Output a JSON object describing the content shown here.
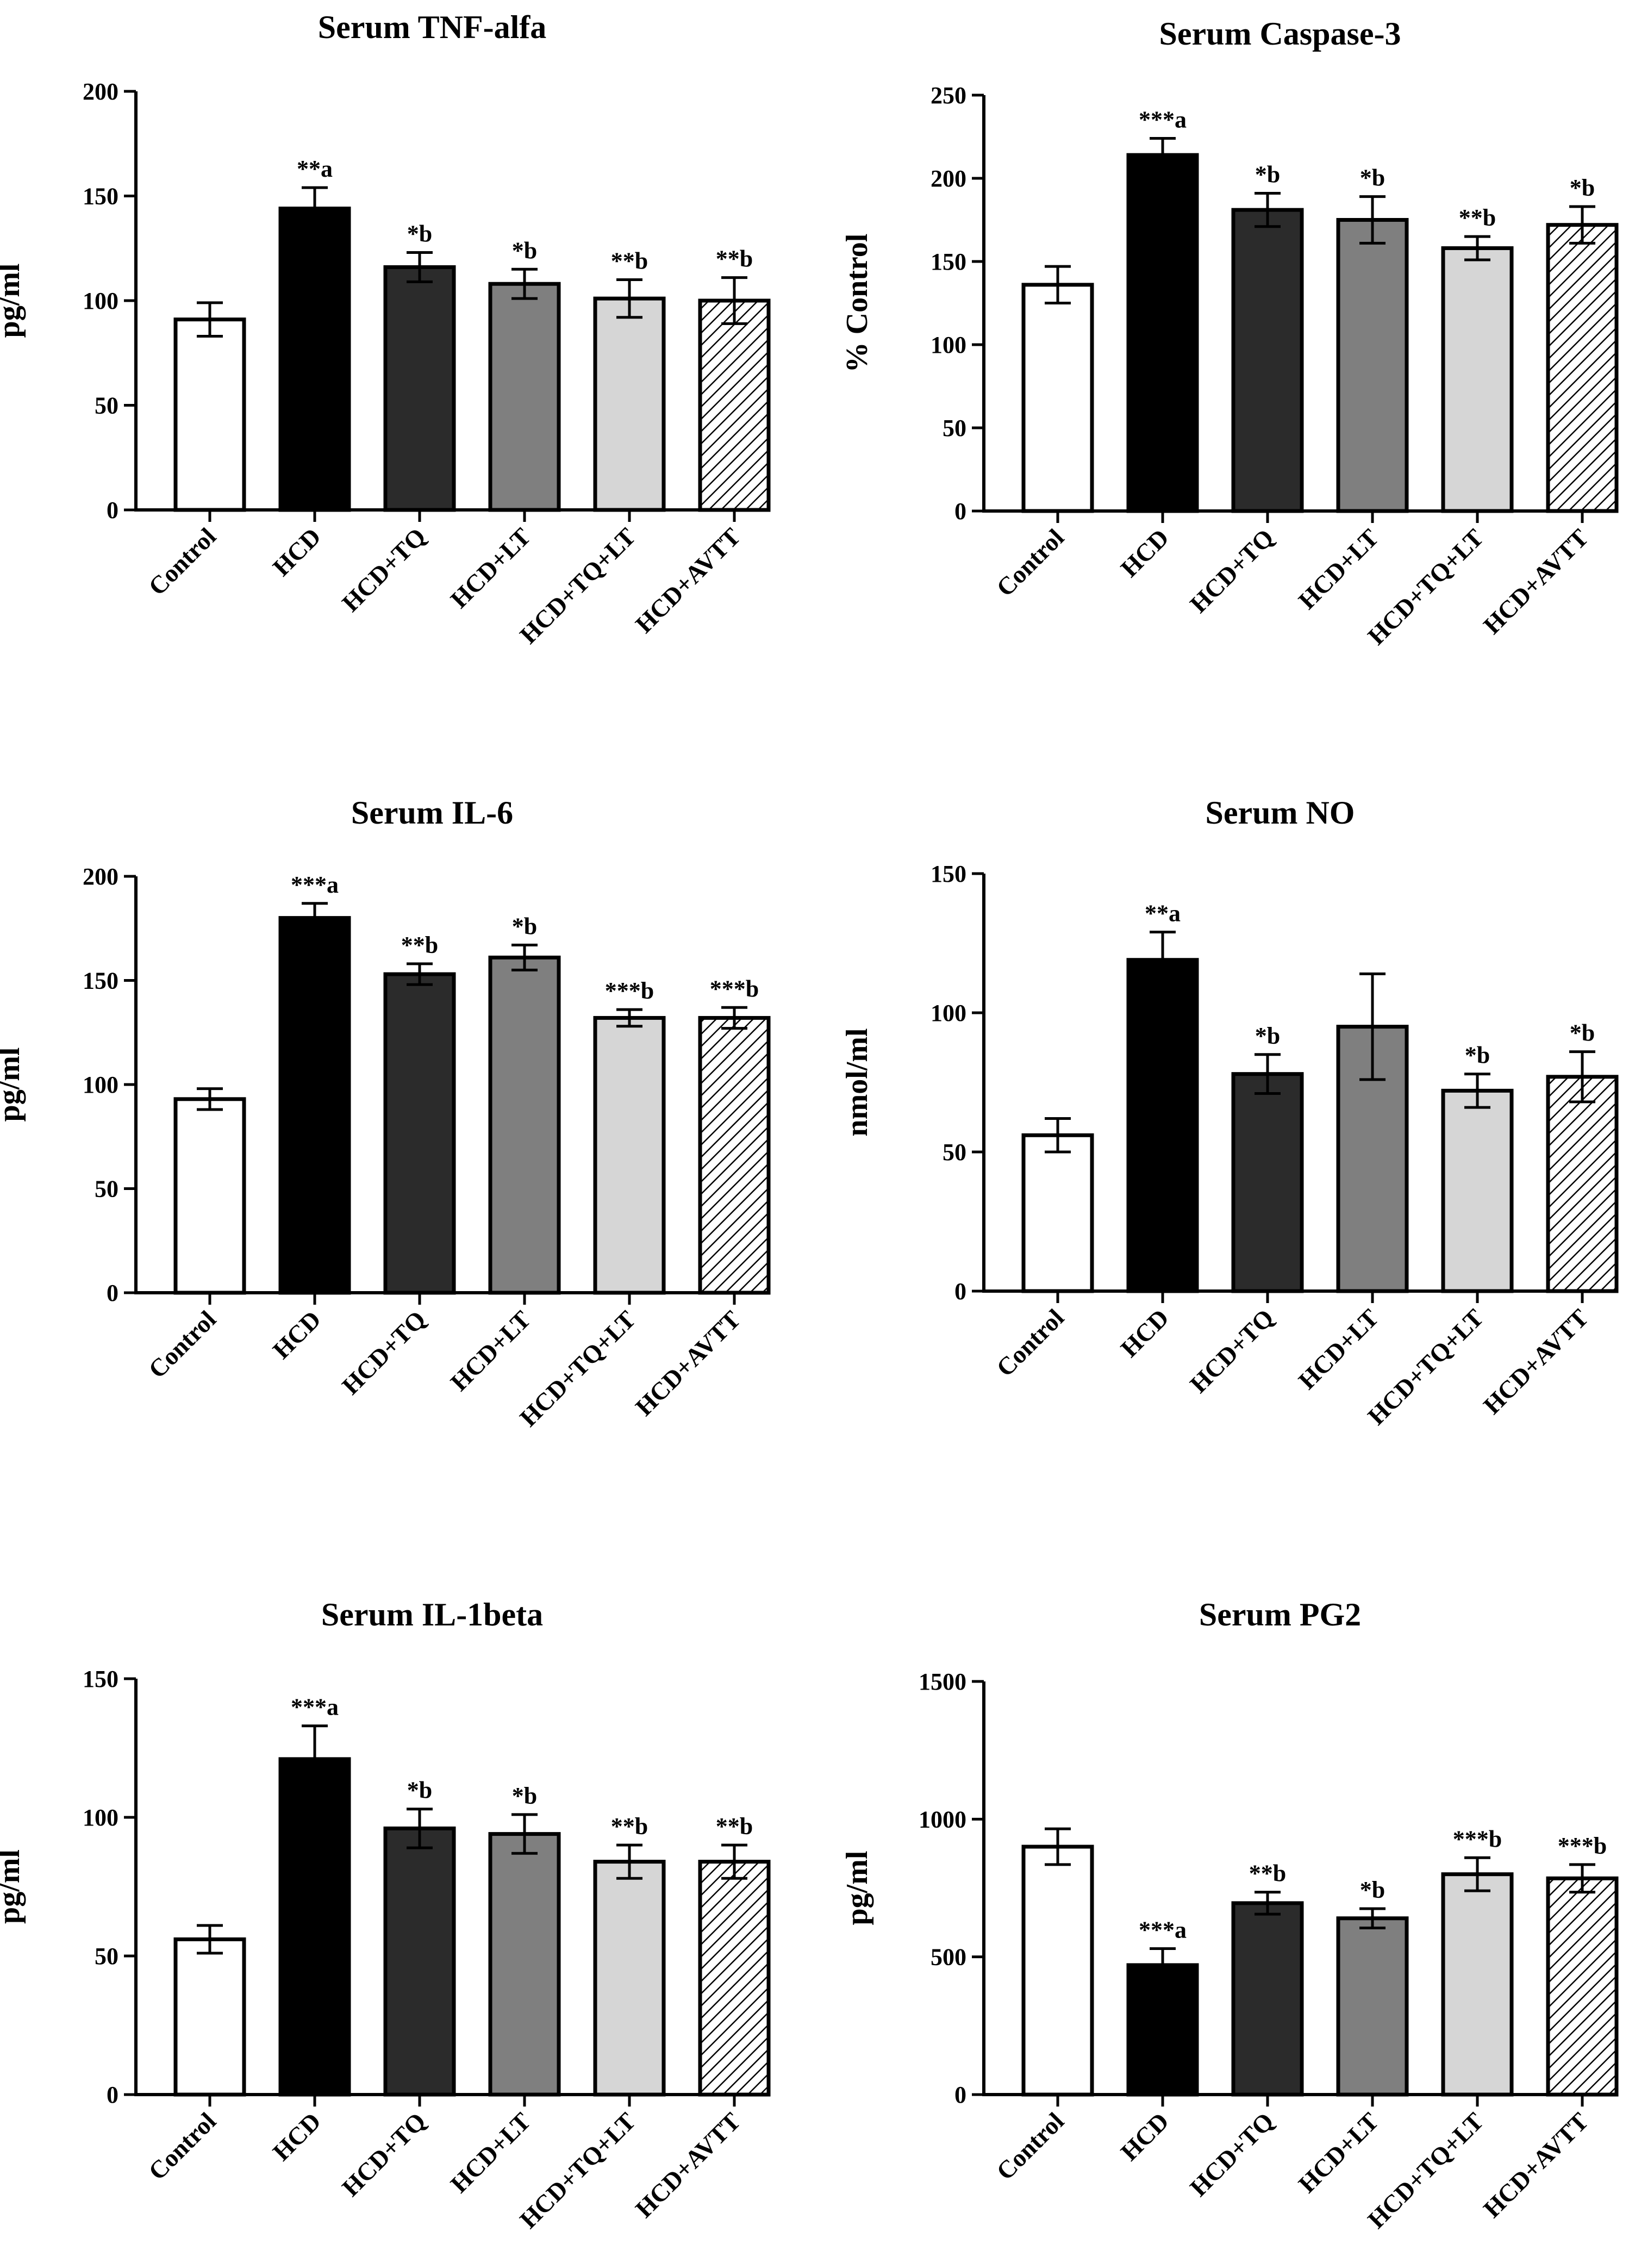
{
  "chart_data": [
    {
      "type": "bar",
      "title": "Serum TNF-alfa",
      "ylabel": "pg/ml",
      "ylim": [
        0,
        200
      ],
      "yticks": [
        0,
        50,
        100,
        150,
        200
      ],
      "categories": [
        "Control",
        "HCD",
        "HCD+TQ",
        "HCD+LT",
        "HCD+TQ+LT",
        "HCD+AVTT"
      ],
      "values": [
        91,
        144,
        116,
        108,
        101,
        100
      ],
      "errors": [
        8,
        10,
        7,
        7,
        9,
        11
      ],
      "significance": [
        "",
        "**a",
        "*b",
        "*b",
        "**b",
        "**b"
      ]
    },
    {
      "type": "bar",
      "title": "Serum Caspase-3",
      "ylabel": "% Control",
      "ylim": [
        0,
        250
      ],
      "yticks": [
        0,
        50,
        100,
        150,
        200,
        250
      ],
      "categories": [
        "Control",
        "HCD",
        "HCD+TQ",
        "HCD+LT",
        "HCD+TQ+LT",
        "HCD+AVTT"
      ],
      "values": [
        136,
        214,
        181,
        175,
        158,
        172
      ],
      "errors": [
        11,
        10,
        10,
        14,
        7,
        11
      ],
      "significance": [
        "",
        "***a",
        "*b",
        "*b",
        "**b",
        "*b"
      ]
    },
    {
      "type": "bar",
      "title": "Serum IL-6",
      "ylabel": "pg/ml",
      "ylim": [
        0,
        200
      ],
      "yticks": [
        0,
        50,
        100,
        150,
        200
      ],
      "categories": [
        "Control",
        "HCD",
        "HCD+TQ",
        "HCD+LT",
        "HCD+TQ+LT",
        "HCD+AVTT"
      ],
      "values": [
        93,
        180,
        153,
        161,
        132,
        132
      ],
      "errors": [
        5,
        7,
        5,
        6,
        4,
        5
      ],
      "significance": [
        "",
        "***a",
        "**b",
        "*b",
        "***b",
        "***b"
      ]
    },
    {
      "type": "bar",
      "title": "Serum NO",
      "ylabel": "nmol/ml",
      "ylim": [
        0,
        150
      ],
      "yticks": [
        0,
        50,
        100,
        150
      ],
      "categories": [
        "Control",
        "HCD",
        "HCD+TQ",
        "HCD+LT",
        "HCD+TQ+LT",
        "HCD+AVTT"
      ],
      "values": [
        56,
        119,
        78,
        95,
        72,
        77
      ],
      "errors": [
        6,
        10,
        7,
        19,
        6,
        9
      ],
      "significance": [
        "",
        "**a",
        "*b",
        "",
        "*b",
        "*b"
      ]
    },
    {
      "type": "bar",
      "title": "Serum IL-1beta",
      "ylabel": "pg/ml",
      "ylim": [
        0,
        150
      ],
      "yticks": [
        0,
        50,
        100,
        150
      ],
      "categories": [
        "Control",
        "HCD",
        "HCD+TQ",
        "HCD+LT",
        "HCD+TQ+LT",
        "HCD+AVTT"
      ],
      "values": [
        56,
        121,
        96,
        94,
        84,
        84
      ],
      "errors": [
        5,
        12,
        7,
        7,
        6,
        6
      ],
      "significance": [
        "",
        "***a",
        "*b",
        "*b",
        "**b",
        "**b"
      ]
    },
    {
      "type": "bar",
      "title": "Serum PG2",
      "ylabel": "pg/ml",
      "ylim": [
        0,
        1500
      ],
      "yticks": [
        0,
        500,
        1000,
        1500
      ],
      "categories": [
        "Control",
        "HCD",
        "HCD+TQ",
        "HCD+LT",
        "HCD+TQ+LT",
        "HCD+AVTT"
      ],
      "values": [
        900,
        470,
        695,
        640,
        800,
        785
      ],
      "errors": [
        65,
        60,
        40,
        35,
        60,
        50
      ],
      "significance": [
        "",
        "***a",
        "**b",
        "*b",
        "***b",
        "***b"
      ]
    }
  ],
  "bar_fills": [
    "#ffffff",
    "#000000",
    "#2b2b2b",
    "#7f7f7f",
    "#d6d6d6",
    "hatch"
  ]
}
